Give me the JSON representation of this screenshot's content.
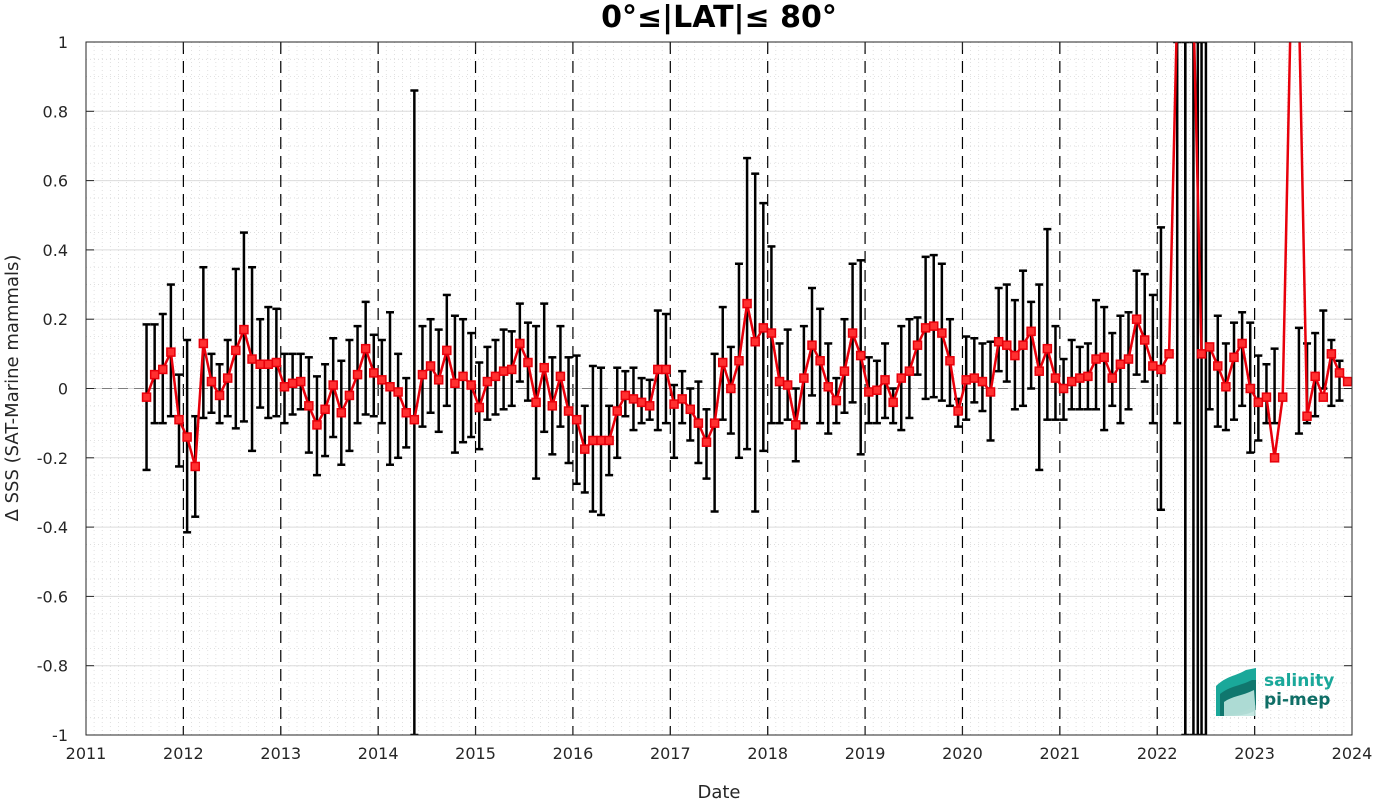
{
  "chart_data": {
    "type": "line",
    "title": "0°≤|LAT|≤ 80°",
    "xlabel": "Date",
    "ylabel": "Δ SSS (SAT-Marine mammals)",
    "xlim": [
      "2011-01-01",
      "2024-01-01"
    ],
    "ylim": [
      -1,
      1
    ],
    "xticks": [
      "2011",
      "2012",
      "2013",
      "2014",
      "2015",
      "2016",
      "2017",
      "2018",
      "2019",
      "2020",
      "2021",
      "2022",
      "2023",
      "2024"
    ],
    "yticks": [
      "-1",
      "-0.8",
      "-0.6",
      "-0.4",
      "-0.2",
      "0",
      "0.2",
      "0.4",
      "0.6",
      "0.8",
      "1"
    ],
    "grid": true,
    "year_separators": "dashed vertical lines at each January 1",
    "zero_line": "dashed horizontal at 0",
    "colors": {
      "series": "#e8000b",
      "errorbars": "#000000",
      "grid": "#d9d9d9",
      "logo_primary": "#1aa89a",
      "logo_secondary": "#0f6e66"
    },
    "series": [
      {
        "marker": "square",
        "x": [
          "2011-08-15",
          "2011-09-15",
          "2011-10-15",
          "2011-11-15",
          "2011-12-15",
          "2012-01-15",
          "2012-02-15",
          "2012-03-15",
          "2012-04-15",
          "2012-05-15",
          "2012-06-15",
          "2012-07-15",
          "2012-08-15",
          "2012-09-15",
          "2012-10-15",
          "2012-11-15",
          "2012-12-15",
          "2013-01-15",
          "2013-02-15",
          "2013-03-15",
          "2013-04-15",
          "2013-05-15",
          "2013-06-15",
          "2013-07-15",
          "2013-08-15",
          "2013-09-15",
          "2013-10-15",
          "2013-11-15",
          "2013-12-15",
          "2014-01-15",
          "2014-02-15",
          "2014-03-15",
          "2014-04-15",
          "2014-05-15",
          "2014-06-15",
          "2014-07-15",
          "2014-08-15",
          "2014-09-15",
          "2014-10-15",
          "2014-11-15",
          "2014-12-15",
          "2015-01-15",
          "2015-02-15",
          "2015-03-15",
          "2015-04-15",
          "2015-05-15",
          "2015-06-15",
          "2015-07-15",
          "2015-08-15",
          "2015-09-15",
          "2015-10-15",
          "2015-11-15",
          "2015-12-15",
          "2016-01-15",
          "2016-02-15",
          "2016-03-15",
          "2016-04-15",
          "2016-05-15",
          "2016-06-15",
          "2016-07-15",
          "2016-08-15",
          "2016-09-15",
          "2016-10-15",
          "2016-11-15",
          "2016-12-15",
          "2017-01-15",
          "2017-02-15",
          "2017-03-15",
          "2017-04-15",
          "2017-05-15",
          "2017-06-15",
          "2017-07-15",
          "2017-08-15",
          "2017-09-15",
          "2017-10-15",
          "2017-11-15",
          "2017-12-15",
          "2018-01-15",
          "2018-02-15",
          "2018-03-15",
          "2018-04-15",
          "2018-05-15",
          "2018-06-15",
          "2018-07-15",
          "2018-08-15",
          "2018-09-15",
          "2018-10-15",
          "2018-11-15",
          "2018-12-15",
          "2019-01-15",
          "2019-02-15",
          "2019-03-15",
          "2019-04-15",
          "2019-05-15",
          "2019-06-15",
          "2019-07-15",
          "2019-08-15",
          "2019-09-15",
          "2019-10-15",
          "2019-11-15",
          "2019-12-15",
          "2020-01-15",
          "2020-02-15",
          "2020-03-15",
          "2020-04-15",
          "2020-05-15",
          "2020-06-15",
          "2020-07-15",
          "2020-08-15",
          "2020-09-15",
          "2020-10-15",
          "2020-11-15",
          "2020-12-15",
          "2021-01-15",
          "2021-02-15",
          "2021-03-15",
          "2021-04-15",
          "2021-05-15",
          "2021-06-15",
          "2021-07-15",
          "2021-08-15",
          "2021-09-15",
          "2021-10-15",
          "2021-11-15",
          "2021-12-15",
          "2022-01-15",
          "2022-02-15",
          "2022-03-15",
          "2022-04-15",
          "2022-05-15",
          "2022-06-15",
          "2022-07-15",
          "2022-08-15",
          "2022-09-15",
          "2022-10-15",
          "2022-11-15",
          "2022-12-15",
          "2023-01-15",
          "2023-02-15",
          "2023-03-15",
          "2023-04-15",
          "2023-05-15",
          "2023-06-15",
          "2023-07-15",
          "2023-08-15",
          "2023-09-15",
          "2023-10-15",
          "2023-11-15",
          "2023-12-15"
        ],
        "y": [
          -0.025,
          0.04,
          0.055,
          0.105,
          -0.09,
          -0.14,
          -0.225,
          0.13,
          0.02,
          -0.02,
          0.03,
          0.11,
          0.17,
          0.085,
          0.07,
          0.07,
          0.075,
          0.005,
          0.015,
          0.02,
          -0.05,
          -0.105,
          -0.06,
          0.01,
          -0.07,
          -0.02,
          0.04,
          0.115,
          0.045,
          0.025,
          0.005,
          -0.01,
          -0.07,
          -0.09,
          0.04,
          0.065,
          0.025,
          0.11,
          0.015,
          0.035,
          0.01,
          -0.055,
          0.02,
          0.035,
          0.05,
          0.055,
          0.13,
          0.075,
          -0.04,
          0.06,
          -0.05,
          0.035,
          -0.065,
          -0.09,
          -0.175,
          -0.15,
          -0.15,
          -0.15,
          -0.065,
          -0.02,
          -0.03,
          -0.04,
          -0.05,
          0.055,
          0.055,
          -0.045,
          -0.03,
          -0.06,
          -0.1,
          -0.155,
          -0.1,
          0.075,
          0.0,
          0.08,
          0.245,
          0.135,
          0.175,
          0.16,
          0.02,
          0.01,
          -0.105,
          0.03,
          0.125,
          0.08,
          0.005,
          -0.035,
          0.05,
          0.16,
          0.095,
          -0.01,
          -0.005,
          0.025,
          -0.04,
          0.03,
          0.05,
          0.125,
          0.175,
          0.18,
          0.16,
          0.08,
          -0.065,
          0.025,
          0.03,
          0.02,
          -0.01,
          0.135,
          0.125,
          0.095,
          0.125,
          0.165,
          0.05,
          0.115,
          0.03,
          0.0,
          0.02,
          0.03,
          0.035,
          0.085,
          0.09,
          0.03,
          0.07,
          0.085,
          0.2,
          0.14,
          0.065,
          0.055,
          0.1,
          null,
          null,
          null,
          0.1,
          0.12,
          0.065,
          0.005,
          0.09,
          0.13,
          0.0,
          -0.04,
          -0.025,
          -0.2,
          -0.025,
          null,
          null,
          -0.08,
          0.035,
          -0.025,
          0.1,
          0.045,
          0.02
        ],
        "err_low": [
          -0.235,
          -0.1,
          -0.1,
          -0.08,
          -0.225,
          -0.415,
          -0.37,
          -0.085,
          -0.07,
          -0.1,
          -0.08,
          -0.115,
          -0.095,
          -0.18,
          -0.055,
          -0.085,
          -0.08,
          -0.1,
          -0.075,
          -0.06,
          -0.185,
          -0.25,
          -0.195,
          -0.14,
          -0.22,
          -0.18,
          -0.1,
          -0.075,
          -0.08,
          -0.1,
          -0.22,
          -0.2,
          -0.17,
          -1.0,
          -0.11,
          -0.07,
          -0.125,
          -0.05,
          -0.185,
          -0.155,
          -0.14,
          -0.175,
          -0.09,
          -0.075,
          -0.06,
          -0.05,
          0.02,
          -0.035,
          -0.26,
          -0.125,
          -0.19,
          -0.11,
          -0.215,
          -0.275,
          -0.3,
          -0.355,
          -0.365,
          -0.25,
          -0.2,
          -0.08,
          -0.12,
          -0.1,
          -0.09,
          -0.12,
          -0.1,
          -0.2,
          -0.1,
          -0.15,
          -0.215,
          -0.26,
          -0.355,
          -0.09,
          -0.13,
          -0.2,
          -0.175,
          -0.355,
          -0.18,
          -0.1,
          -0.1,
          -0.09,
          -0.21,
          -0.1,
          -0.02,
          -0.1,
          -0.13,
          -0.1,
          -0.07,
          -0.04,
          -0.19,
          -0.1,
          -0.1,
          -0.085,
          -0.1,
          -0.12,
          -0.085,
          0.04,
          -0.03,
          -0.025,
          -0.035,
          -0.05,
          -0.11,
          -0.09,
          -0.04,
          -0.065,
          -0.15,
          0.05,
          0.02,
          -0.06,
          -0.05,
          0.0,
          -0.235,
          -0.09,
          -0.09,
          -0.09,
          -0.06,
          -0.06,
          -0.06,
          -0.06,
          -0.12,
          -0.05,
          -0.1,
          -0.06,
          0.04,
          0.02,
          -0.1,
          -0.35,
          null,
          -0.1,
          -1.0,
          -1.0,
          -1.0,
          -0.06,
          -0.11,
          -0.12,
          -0.09,
          -0.05,
          -0.185,
          -0.15,
          -0.1,
          -0.1,
          null,
          null,
          -0.13,
          -0.1,
          -0.08,
          0.0,
          -0.05,
          -0.035
        ],
        "err_high": [
          0.185,
          0.185,
          0.215,
          0.3,
          0.04,
          0.14,
          -0.08,
          0.35,
          0.1,
          0.07,
          0.14,
          0.345,
          0.45,
          0.35,
          0.2,
          0.235,
          0.23,
          0.1,
          0.1,
          0.1,
          0.09,
          0.035,
          0.07,
          0.145,
          0.08,
          0.14,
          0.18,
          0.25,
          0.155,
          0.14,
          0.22,
          0.1,
          0.03,
          0.86,
          0.18,
          0.2,
          0.17,
          0.27,
          0.21,
          0.2,
          0.16,
          0.075,
          0.12,
          0.14,
          0.17,
          0.165,
          0.245,
          0.19,
          0.18,
          0.245,
          0.09,
          0.18,
          0.09,
          0.095,
          -0.05,
          0.065,
          0.06,
          -0.05,
          0.06,
          0.05,
          0.06,
          0.03,
          0.025,
          0.225,
          0.215,
          0.01,
          0.05,
          0.0,
          0.02,
          -0.06,
          0.1,
          0.235,
          0.12,
          0.36,
          0.665,
          0.62,
          0.535,
          0.41,
          0.13,
          0.17,
          0.0,
          0.18,
          0.29,
          0.23,
          0.13,
          0.03,
          0.2,
          0.36,
          0.37,
          0.09,
          0.08,
          0.13,
          0.0,
          0.18,
          0.2,
          0.205,
          0.38,
          0.385,
          0.36,
          0.2,
          -0.03,
          0.15,
          0.145,
          0.13,
          0.135,
          0.29,
          0.3,
          0.255,
          0.34,
          0.25,
          0.3,
          0.46,
          0.18,
          0.085,
          0.14,
          0.12,
          0.13,
          0.255,
          0.235,
          0.16,
          0.21,
          0.22,
          0.34,
          0.33,
          0.27,
          0.465,
          null,
          1.0,
          1.0,
          1.0,
          1.0,
          0.12,
          0.21,
          0.13,
          0.19,
          0.22,
          0.19,
          0.095,
          0.07,
          0.115,
          null,
          null,
          0.175,
          0.13,
          0.16,
          0.225,
          0.14,
          0.08
        ]
      }
    ],
    "off_scale_segments": [
      {
        "x": [
          "2022-02-15",
          "2022-03-15"
        ],
        "note": "red line leaves top of plot"
      },
      {
        "x": [
          "2022-05-15",
          "2022-06-15"
        ],
        "note": "red line returns from top of plot"
      },
      {
        "x": [
          "2023-04-15",
          "2023-05-15"
        ],
        "note": "red line leaves top of plot"
      },
      {
        "x": [
          "2023-06-15",
          "2023-07-15"
        ],
        "note": "red line returns from top of plot"
      }
    ],
    "off_scale_errorbars": [
      "2022-04-15",
      "2022-06-01",
      "2022-07-01"
    ]
  },
  "logo": {
    "line1": "salinity",
    "line2": "pi-mep"
  }
}
